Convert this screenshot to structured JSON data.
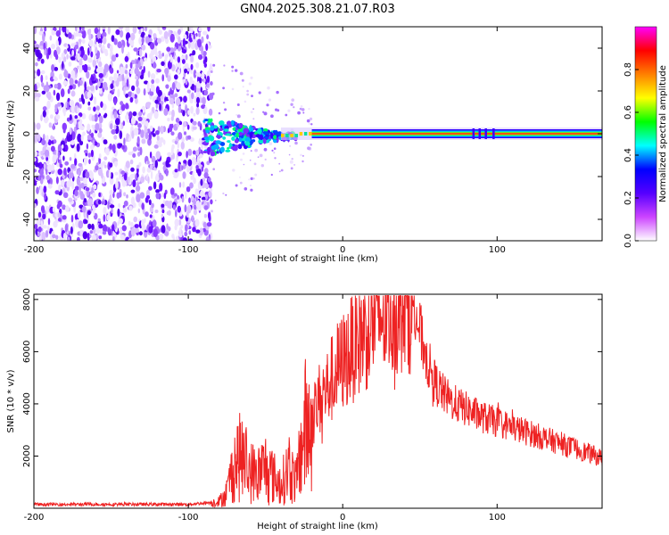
{
  "title": "GN04.2025.308.21.07.R03",
  "chart_data": [
    {
      "type": "heatmap",
      "name": "spectrogram",
      "xlabel": "Height of straight line (km)",
      "ylabel": "Frequency (Hz)",
      "xlim": [
        -200,
        168
      ],
      "ylim": [
        -50,
        50
      ],
      "xticks": [
        -200,
        -100,
        0,
        100
      ],
      "yticks": [
        -40,
        -20,
        0,
        20,
        40
      ],
      "noise_region_x": [
        -200,
        -85
      ],
      "signal_line_frequency_hz": 0,
      "signal_start_x": -85,
      "colorbar": {
        "label": "Normalized spectral amplitude",
        "range": [
          0,
          1
        ],
        "ticks": [
          0.0,
          0.2,
          0.4,
          0.6,
          0.8
        ],
        "colors": [
          "#ffffff",
          "#cc44ff",
          "#5500ff",
          "#0000ff",
          "#00ffff",
          "#00ff00",
          "#ffff00",
          "#ff8000",
          "#ff0000",
          "#ff00ff"
        ]
      }
    },
    {
      "type": "line",
      "name": "snr",
      "xlabel": "Height of straight line (km)",
      "ylabel": "SNR (10 * v/v)",
      "xlim": [
        -200,
        168
      ],
      "ylim": [
        0,
        8200
      ],
      "xticks": [
        -200,
        -100,
        0,
        100
      ],
      "yticks": [
        2000,
        4000,
        6000,
        8000
      ],
      "color": "#ee2222",
      "series": [
        {
          "name": "SNR",
          "x": [
            -200,
            -150,
            -100,
            -80,
            -75,
            -70,
            -65,
            -60,
            -55,
            -50,
            -45,
            -40,
            -35,
            -30,
            -25,
            -20,
            -15,
            -10,
            -5,
            0,
            5,
            10,
            15,
            20,
            25,
            30,
            35,
            40,
            45,
            50,
            55,
            60,
            65,
            70,
            80,
            90,
            100,
            110,
            120,
            130,
            140,
            150,
            160,
            168
          ],
          "y": [
            150,
            150,
            150,
            250,
            600,
            1800,
            2000,
            1400,
            1300,
            1600,
            1200,
            900,
            1500,
            1000,
            3000,
            3400,
            4200,
            4600,
            5200,
            5600,
            6000,
            6500,
            6800,
            7200,
            7400,
            7600,
            7700,
            7800,
            7900,
            6800,
            5600,
            4800,
            4400,
            4100,
            3800,
            3500,
            3300,
            3100,
            2900,
            2700,
            2500,
            2300,
            2100,
            1900
          ]
        }
      ]
    }
  ]
}
